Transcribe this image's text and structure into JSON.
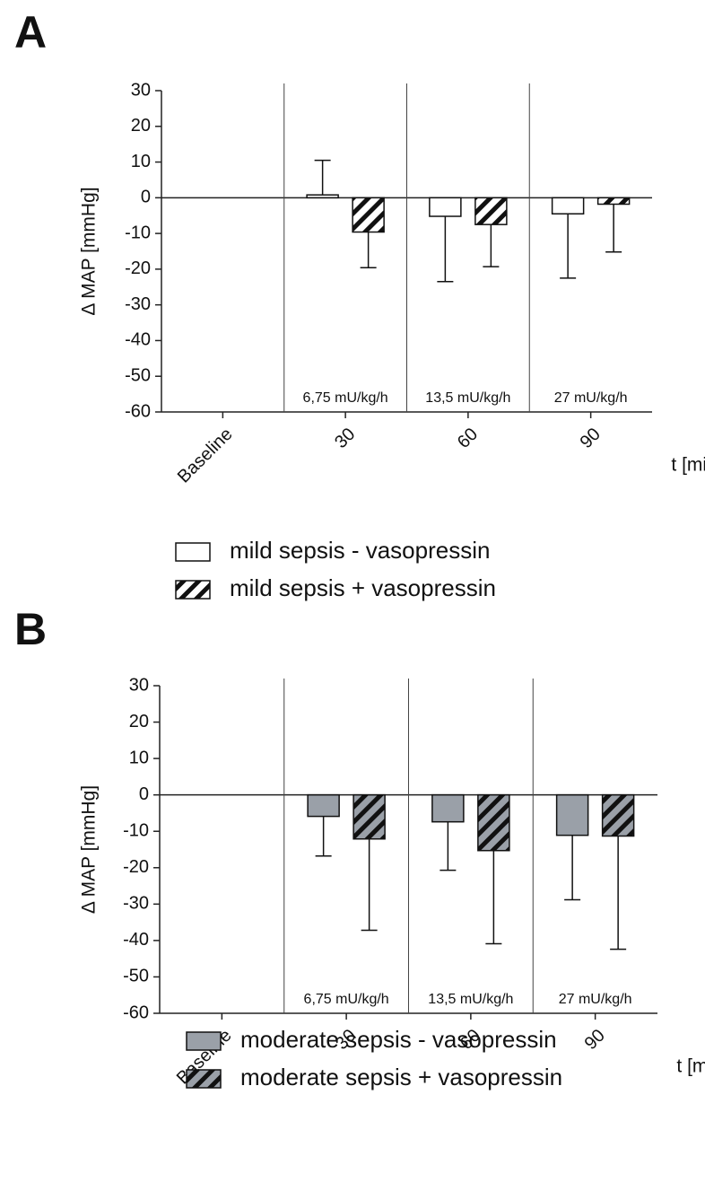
{
  "chart_data": [
    {
      "type": "bar",
      "panel_label": "A",
      "y_label": "Δ MAP [mmHg]",
      "x_label": "t [min]",
      "categories": [
        "Baseline",
        "30",
        "60",
        "90"
      ],
      "annotations": [
        "6,75 mU/kg/h",
        "13,5 mU/kg/h",
        "27 mU/kg/h"
      ],
      "ylim": [
        -60,
        30
      ],
      "yticks": [
        -60,
        -50,
        -40,
        -30,
        -20,
        -10,
        0,
        10,
        20,
        30
      ],
      "series": [
        {
          "name": "mild sepsis - vasopressin",
          "color": "#ffffff",
          "hatch": false,
          "values": [
            null,
            0.8,
            -5.2,
            -4.5
          ],
          "errors": [
            null,
            9.7,
            18.3,
            18
          ]
        },
        {
          "name": "mild sepsis + vasopressin",
          "color": "#ffffff",
          "hatch": true,
          "values": [
            null,
            -9.6,
            -7.5,
            -1.8
          ],
          "errors": [
            null,
            10,
            11.8,
            13.4
          ]
        }
      ]
    },
    {
      "type": "bar",
      "panel_label": "B",
      "y_label": "Δ MAP [mmHg]",
      "x_label": "t [min]",
      "categories": [
        "Baseline",
        "30",
        "60",
        "90"
      ],
      "annotations": [
        "6,75 mU/kg/h",
        "13,5 mU/kg/h",
        "27 mU/kg/h"
      ],
      "ylim": [
        -60,
        30
      ],
      "yticks": [
        -60,
        -50,
        -40,
        -30,
        -20,
        -10,
        0,
        10,
        20,
        30
      ],
      "series": [
        {
          "name": "moderate sepsis - vasopressin",
          "color": "#9aa0a8",
          "hatch": false,
          "values": [
            null,
            -5.9,
            -7.4,
            -11.1
          ],
          "errors": [
            null,
            10.9,
            13.3,
            17.7
          ]
        },
        {
          "name": "moderate sepsis + vasopressin",
          "color": "#9aa0a8",
          "hatch": true,
          "values": [
            null,
            -12.1,
            -15.3,
            -11.3
          ],
          "errors": [
            null,
            25.1,
            25.6,
            31.1
          ]
        }
      ]
    }
  ]
}
